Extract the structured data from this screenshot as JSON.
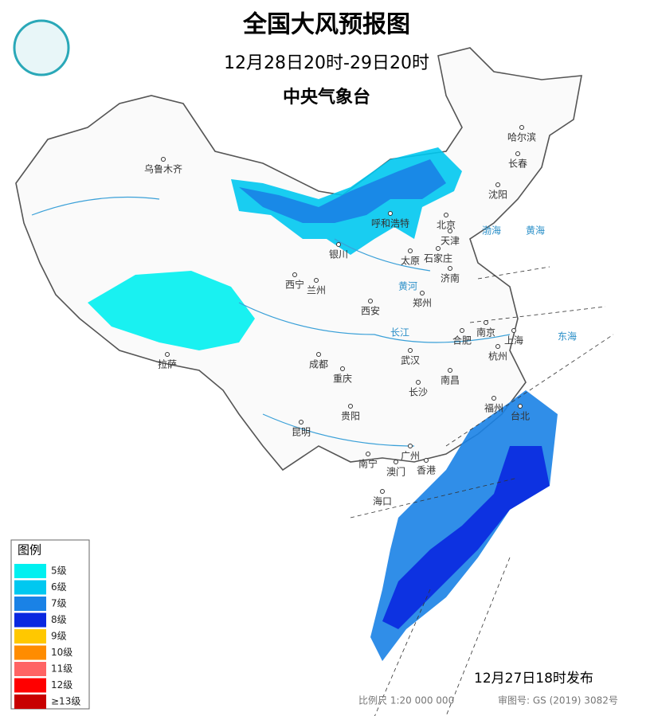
{
  "header": {
    "title": "全国大风预报图",
    "period": "12月28日20时-29日20时",
    "issuer": "中央气象台"
  },
  "cities": [
    "乌鲁木齐",
    "哈尔滨",
    "长春",
    "沈阳",
    "北京",
    "天津",
    "呼和浩特",
    "银川",
    "太原",
    "石家庄",
    "济南",
    "西宁",
    "兰州",
    "郑州",
    "西安",
    "合肥",
    "南京",
    "上海",
    "杭州",
    "武汉",
    "成都",
    "重庆",
    "南昌",
    "拉萨",
    "长沙",
    "贵阳",
    "福州",
    "台北",
    "昆明",
    "广州",
    "南宁",
    "澳门",
    "香港",
    "海口"
  ],
  "seas": [
    "东海",
    "渤海",
    "黄海",
    "长江",
    "黄河"
  ],
  "legend": {
    "title": "图例",
    "items": [
      {
        "label": "5级",
        "color": "#00f0f0"
      },
      {
        "label": "6级",
        "color": "#00c8f0"
      },
      {
        "label": "7级",
        "color": "#1a82e6"
      },
      {
        "label": "8级",
        "color": "#0a28e0"
      },
      {
        "label": "9级",
        "color": "#ffc800"
      },
      {
        "label": "10级",
        "color": "#ff8c00"
      },
      {
        "label": "11级",
        "color": "#ff6464"
      },
      {
        "label": "12级",
        "color": "#ff0000"
      },
      {
        "label": "≥13级",
        "color": "#c80000"
      }
    ]
  },
  "footer": {
    "issued": "12月27日18时发布",
    "scale": "比例尺 1:20 000 000",
    "review": "审图号: GS (2019) 3082号"
  }
}
